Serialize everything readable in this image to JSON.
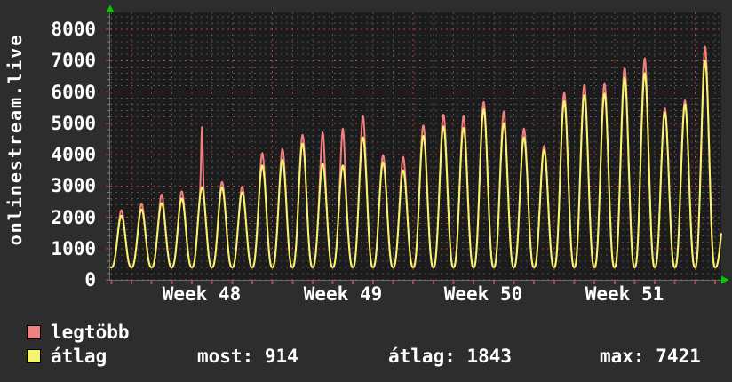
{
  "chart": {
    "vertical_title": "onlinestream.live",
    "colors": {
      "background": "#2d2d2d",
      "plot_background": "#1c1c1c",
      "grid_minor": "#515151",
      "grid_major": "#a84545",
      "axis": "#6a6a6a",
      "tick_red": "#b04848",
      "arrow_green": "#00cc00",
      "text": "#ffffff"
    }
  },
  "chart_data": {
    "type": "line",
    "title": "onlinestream.live",
    "xlabel": "",
    "ylabel": "onlinestream.live",
    "x_unit": "day",
    "days_visible": 30.3,
    "x_tick_labels": [
      "Week 48",
      "Week 49",
      "Week 50",
      "Week 51"
    ],
    "y_ticks": [
      0,
      1000,
      2000,
      3000,
      4000,
      5000,
      6000,
      7000,
      8000
    ],
    "ylim": [
      0,
      8540
    ],
    "grid": true,
    "legend_position": "bottom-left",
    "daily_trough": 400,
    "series": [
      {
        "name": "legtöbb",
        "color": "#f08080",
        "daily_peaks": [
          2200,
          2400,
          2700,
          2800,
          4850,
          3100,
          2950,
          4020,
          4150,
          4600,
          4680,
          4800,
          5200,
          3950,
          3900,
          4900,
          5250,
          5200,
          5650,
          5350,
          4800,
          4250,
          5950,
          6200,
          6250,
          6750,
          7050,
          5450,
          5700,
          7421,
          2400
        ]
      },
      {
        "name": "átlag",
        "color": "#f5f56e",
        "daily_peaks": [
          2050,
          2250,
          2450,
          2600,
          2950,
          2950,
          2800,
          3650,
          3830,
          4350,
          3700,
          3650,
          4550,
          3750,
          3500,
          4600,
          4900,
          4850,
          5450,
          5000,
          4550,
          4150,
          5700,
          5900,
          5950,
          6450,
          6600,
          5350,
          5600,
          7000,
          2300
        ]
      }
    ],
    "stats": {
      "most": 914,
      "atlag": 1843,
      "max": 7421
    }
  },
  "legend": {
    "items": [
      {
        "label": "legtöbb",
        "color": "#f08080"
      },
      {
        "label": "átlag",
        "color": "#f5f56e"
      }
    ]
  },
  "stats_row": {
    "most": "most: 914",
    "atlag": "átlag: 1843",
    "max": "max: 7421"
  }
}
